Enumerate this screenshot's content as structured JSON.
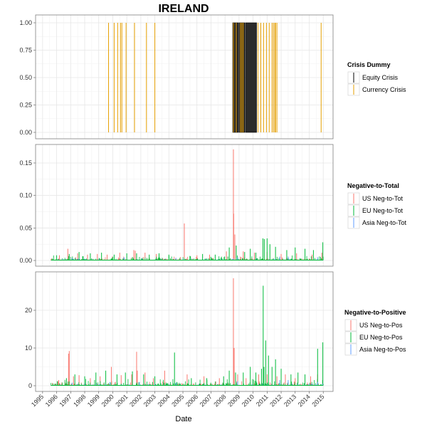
{
  "title": "IRELAND",
  "x_axis_title": "Date",
  "x_ticks": [
    "1995",
    "1996",
    "1997",
    "1998",
    "1999",
    "2000",
    "2001",
    "2002",
    "2003",
    "2004",
    "2005",
    "2006",
    "2007",
    "2008",
    "2009",
    "2010",
    "2011",
    "2012",
    "2013",
    "2014",
    "2015"
  ],
  "chart_data": [
    {
      "type": "line",
      "panel": "Crisis Dummy",
      "ylim": [
        0,
        1
      ],
      "y_ticks": [
        "0.00",
        "0.25",
        "0.50",
        "0.75",
        "1.00"
      ],
      "legend": {
        "title": "Crisis Dummy",
        "items": [
          {
            "label": "Equity Crisis",
            "color": "#000000"
          },
          {
            "label": "Currency Crisis",
            "color": "#E69F00"
          }
        ]
      },
      "series": [
        {
          "name": "Equity Crisis",
          "color": "#000000",
          "periods": [
            [
              2008.55,
              2008.95
            ],
            [
              2009.0,
              2009.4
            ],
            [
              2009.45,
              2010.25
            ]
          ]
        },
        {
          "name": "Currency Crisis",
          "color": "#E69F00",
          "spikes": [
            1999.7,
            2000.1,
            2000.35,
            2000.55,
            2000.65,
            2000.95,
            2001.55,
            2002.4,
            2003.0,
            2008.6,
            2008.8,
            2009.1,
            2009.2,
            2009.3,
            2010.35,
            2010.55,
            2010.75,
            2010.95,
            2011.15,
            2011.35,
            2011.45,
            2011.55,
            2011.6,
            2011.7,
            2014.85
          ]
        }
      ]
    },
    {
      "type": "line",
      "panel": "Negative-to-Total",
      "ylim": [
        0,
        0.18
      ],
      "y_ticks": [
        "0.00",
        "0.05",
        "0.10",
        "0.15"
      ],
      "legend": {
        "title": "Negative-to-Total",
        "items": [
          {
            "label": "US Neg-to-Tot",
            "color": "#F8766D"
          },
          {
            "label": "EU Neg-to-Tot",
            "color": "#00BA38"
          },
          {
            "label": "Asia Neg-to-Tot",
            "color": "#619CFF"
          }
        ]
      },
      "series": [
        {
          "name": "US Neg-to-Tot",
          "color": "#F8766D",
          "spikes": [
            [
              1996.2,
              0.008
            ],
            [
              1996.8,
              0.018
            ],
            [
              1997.5,
              0.011
            ],
            [
              1998.2,
              0.009
            ],
            [
              1998.9,
              0.01
            ],
            [
              1999.6,
              0.009
            ],
            [
              2000.5,
              0.012
            ],
            [
              2001.5,
              0.016
            ],
            [
              2001.6,
              0.015
            ],
            [
              2002.3,
              0.012
            ],
            [
              2003.1,
              0.01
            ],
            [
              2005.1,
              0.057
            ],
            [
              2006.0,
              0.008
            ],
            [
              2006.9,
              0.009
            ],
            [
              2008.1,
              0.014
            ],
            [
              2008.6,
              0.171
            ],
            [
              2008.62,
              0.072
            ],
            [
              2008.7,
              0.04
            ],
            [
              2009.3,
              0.014
            ],
            [
              2010.1,
              0.012
            ],
            [
              2011.0,
              0.013
            ],
            [
              2012.0,
              0.01
            ],
            [
              2013.1,
              0.011
            ],
            [
              2014.2,
              0.009
            ],
            [
              2014.9,
              0.012
            ]
          ],
          "noise_max": 0.006
        },
        {
          "name": "EU Neg-to-Tot",
          "color": "#00BA38",
          "spikes": [
            [
              1996.0,
              0.008
            ],
            [
              1996.9,
              0.01
            ],
            [
              1997.6,
              0.013
            ],
            [
              1998.4,
              0.011
            ],
            [
              1999.2,
              0.012
            ],
            [
              2000.1,
              0.009
            ],
            [
              2001.0,
              0.011
            ],
            [
              2001.7,
              0.011
            ],
            [
              2002.6,
              0.009
            ],
            [
              2003.3,
              0.011
            ],
            [
              2004.0,
              0.009
            ],
            [
              2005.5,
              0.007
            ],
            [
              2006.4,
              0.01
            ],
            [
              2007.3,
              0.009
            ],
            [
              2008.3,
              0.02
            ],
            [
              2008.8,
              0.023
            ],
            [
              2009.4,
              0.013
            ],
            [
              2009.8,
              0.018
            ],
            [
              2010.2,
              0.012
            ],
            [
              2010.7,
              0.034
            ],
            [
              2010.8,
              0.033
            ],
            [
              2011.0,
              0.034
            ],
            [
              2011.2,
              0.025
            ],
            [
              2011.6,
              0.021
            ],
            [
              2012.4,
              0.016
            ],
            [
              2013.0,
              0.02
            ],
            [
              2013.7,
              0.018
            ],
            [
              2014.3,
              0.016
            ],
            [
              2014.97,
              0.028
            ]
          ],
          "noise_max": 0.008
        },
        {
          "name": "Asia Neg-to-Tot",
          "color": "#619CFF",
          "spikes": [
            [
              1997.1,
              0.004
            ],
            [
              2000.8,
              0.005
            ],
            [
              2004.5,
              0.004
            ],
            [
              2008.9,
              0.005
            ],
            [
              2011.9,
              0.006
            ],
            [
              2012.5,
              0.006
            ],
            [
              2014.6,
              0.005
            ]
          ],
          "noise_max": 0.003
        }
      ]
    },
    {
      "type": "line",
      "panel": "Negative-to-Positive",
      "ylim": [
        0,
        29
      ],
      "y_ticks": [
        "0",
        "10",
        "20"
      ],
      "legend": {
        "title": "Negative-to-Positive",
        "items": [
          {
            "label": "US Neg-to-Pos",
            "color": "#F8766D"
          },
          {
            "label": "EU Neg-to-Pos",
            "color": "#00BA38"
          },
          {
            "label": "Asia Neg-to-Pos",
            "color": "#619CFF"
          }
        ]
      },
      "series": [
        {
          "name": "US Neg-to-Pos",
          "color": "#F8766D",
          "spikes": [
            [
              1996.15,
              1.5
            ],
            [
              1996.85,
              8.5
            ],
            [
              1996.9,
              9.2
            ],
            [
              1997.2,
              2.5
            ],
            [
              1997.6,
              2.8
            ],
            [
              1998.4,
              2.0
            ],
            [
              1999.1,
              2.5
            ],
            [
              1999.9,
              5.0
            ],
            [
              2000.6,
              2.8
            ],
            [
              2001.35,
              3.0
            ],
            [
              2001.7,
              9.0
            ],
            [
              2001.75,
              4.0
            ],
            [
              2002.3,
              3.5
            ],
            [
              2002.9,
              2.0
            ],
            [
              2003.7,
              4.0
            ],
            [
              2005.3,
              3.0
            ],
            [
              2006.5,
              2.5
            ],
            [
              2007.6,
              2.0
            ],
            [
              2008.6,
              28.5
            ],
            [
              2008.65,
              10.0
            ],
            [
              2008.9,
              3.0
            ],
            [
              2009.5,
              2.0
            ],
            [
              2010.4,
              3.0
            ],
            [
              2011.0,
              3.0
            ],
            [
              2011.7,
              2.5
            ],
            [
              2012.3,
              3.0
            ],
            [
              2013.0,
              2.0
            ],
            [
              2014.1,
              2.5
            ],
            [
              2014.6,
              3.0
            ]
          ],
          "noise_max": 1.2
        },
        {
          "name": "EU Neg-to-Pos",
          "color": "#00BA38",
          "spikes": [
            [
              1996.05,
              1.2
            ],
            [
              1996.7,
              2.0
            ],
            [
              1997.3,
              3.0
            ],
            [
              1998.0,
              2.5
            ],
            [
              1998.8,
              3.5
            ],
            [
              1999.5,
              4.0
            ],
            [
              2000.3,
              3.0
            ],
            [
              2000.9,
              3.5
            ],
            [
              2001.4,
              3.8
            ],
            [
              2002.2,
              3.0
            ],
            [
              2003.0,
              2.5
            ],
            [
              2004.4,
              8.8
            ],
            [
              2005.6,
              2.0
            ],
            [
              2006.7,
              2.0
            ],
            [
              2007.9,
              2.5
            ],
            [
              2008.3,
              4.0
            ],
            [
              2008.75,
              3.5
            ],
            [
              2009.3,
              3.5
            ],
            [
              2009.8,
              5.0
            ],
            [
              2010.2,
              3.5
            ],
            [
              2010.6,
              4.5
            ],
            [
              2010.72,
              26.5
            ],
            [
              2010.78,
              5.0
            ],
            [
              2010.9,
              12.0
            ],
            [
              2011.1,
              8.0
            ],
            [
              2011.35,
              5.0
            ],
            [
              2011.6,
              7.0
            ],
            [
              2012.0,
              4.5
            ],
            [
              2012.7,
              3.0
            ],
            [
              2013.2,
              3.5
            ],
            [
              2013.7,
              3.0
            ],
            [
              2014.6,
              9.8
            ],
            [
              2014.97,
              11.5
            ]
          ],
          "noise_max": 1.8
        },
        {
          "name": "Asia Neg-to-Pos",
          "color": "#619CFF",
          "spikes": [
            [
              1997.1,
              0.8
            ],
            [
              1999.8,
              1.0
            ],
            [
              2001.9,
              1.0
            ],
            [
              2004.5,
              0.8
            ],
            [
              2008.9,
              1.2
            ],
            [
              2011.9,
              1.5
            ],
            [
              2012.5,
              1.5
            ],
            [
              2014.6,
              1.0
            ]
          ],
          "noise_max": 0.6
        }
      ]
    }
  ]
}
